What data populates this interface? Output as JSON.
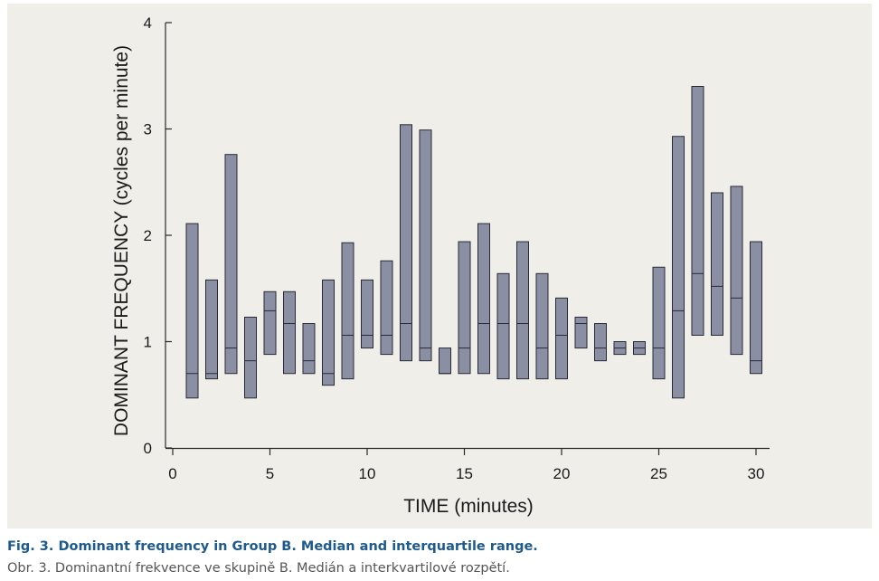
{
  "chart_data": {
    "type": "box (interquartile range bars with median line)",
    "xlabel": "TIME  (minutes)",
    "ylabel": "DOMINANT FREQUENCY  (cycles per minute)",
    "xlim": [
      0,
      30
    ],
    "ylim": [
      0,
      4
    ],
    "x_ticks": [
      0,
      5,
      10,
      15,
      20,
      25,
      30
    ],
    "y_ticks": [
      0,
      1,
      2,
      3,
      4
    ],
    "grid": false,
    "box_color": "#8b8fa3",
    "box_edge_color": "#2a2a35",
    "background": "#efeee9",
    "boxes": [
      {
        "x": 1,
        "q1": 0.47,
        "median": 0.7,
        "q3": 2.11
      },
      {
        "x": 2,
        "q1": 0.65,
        "median": 0.7,
        "q3": 1.58
      },
      {
        "x": 3,
        "q1": 0.7,
        "median": 0.94,
        "q3": 2.76
      },
      {
        "x": 4,
        "q1": 0.47,
        "median": 0.82,
        "q3": 1.23
      },
      {
        "x": 5,
        "q1": 0.88,
        "median": 1.29,
        "q3": 1.47
      },
      {
        "x": 6,
        "q1": 0.7,
        "median": 1.17,
        "q3": 1.47
      },
      {
        "x": 7,
        "q1": 0.7,
        "median": 0.82,
        "q3": 1.17
      },
      {
        "x": 8,
        "q1": 0.59,
        "median": 0.7,
        "q3": 1.58
      },
      {
        "x": 9,
        "q1": 0.65,
        "median": 1.06,
        "q3": 1.93
      },
      {
        "x": 10,
        "q1": 0.94,
        "median": 1.06,
        "q3": 1.58
      },
      {
        "x": 11,
        "q1": 0.88,
        "median": 1.06,
        "q3": 1.76
      },
      {
        "x": 12,
        "q1": 0.82,
        "median": 1.17,
        "q3": 3.04
      },
      {
        "x": 13,
        "q1": 0.82,
        "median": 0.94,
        "q3": 2.99
      },
      {
        "x": 14,
        "q1": 0.7,
        "median": 0.7,
        "q3": 0.94
      },
      {
        "x": 15,
        "q1": 0.7,
        "median": 0.94,
        "q3": 1.94
      },
      {
        "x": 16,
        "q1": 0.7,
        "median": 1.17,
        "q3": 2.11
      },
      {
        "x": 17,
        "q1": 0.65,
        "median": 1.17,
        "q3": 1.64
      },
      {
        "x": 18,
        "q1": 0.65,
        "median": 1.17,
        "q3": 1.94
      },
      {
        "x": 19,
        "q1": 0.65,
        "median": 0.94,
        "q3": 1.64
      },
      {
        "x": 20,
        "q1": 0.65,
        "median": 1.06,
        "q3": 1.41
      },
      {
        "x": 21,
        "q1": 0.94,
        "median": 1.17,
        "q3": 1.23
      },
      {
        "x": 22,
        "q1": 0.82,
        "median": 0.94,
        "q3": 1.17
      },
      {
        "x": 23,
        "q1": 0.88,
        "median": 0.94,
        "q3": 1.0
      },
      {
        "x": 24,
        "q1": 0.88,
        "median": 0.94,
        "q3": 1.0
      },
      {
        "x": 25,
        "q1": 0.65,
        "median": 0.94,
        "q3": 1.7
      },
      {
        "x": 26,
        "q1": 0.47,
        "median": 1.29,
        "q3": 2.93
      },
      {
        "x": 27,
        "q1": 1.06,
        "median": 1.64,
        "q3": 3.4
      },
      {
        "x": 28,
        "q1": 1.06,
        "median": 1.52,
        "q3": 2.4
      },
      {
        "x": 29,
        "q1": 0.88,
        "median": 1.41,
        "q3": 2.46
      },
      {
        "x": 30,
        "q1": 0.7,
        "median": 0.82,
        "q3": 1.94
      }
    ]
  },
  "caption": {
    "english": "Fig. 3. Dominant frequency in Group B. Median and interquartile range.",
    "czech": "Obr. 3. Dominantní frekvence ve skupině B. Medián a interkvartilové rozpětí."
  }
}
